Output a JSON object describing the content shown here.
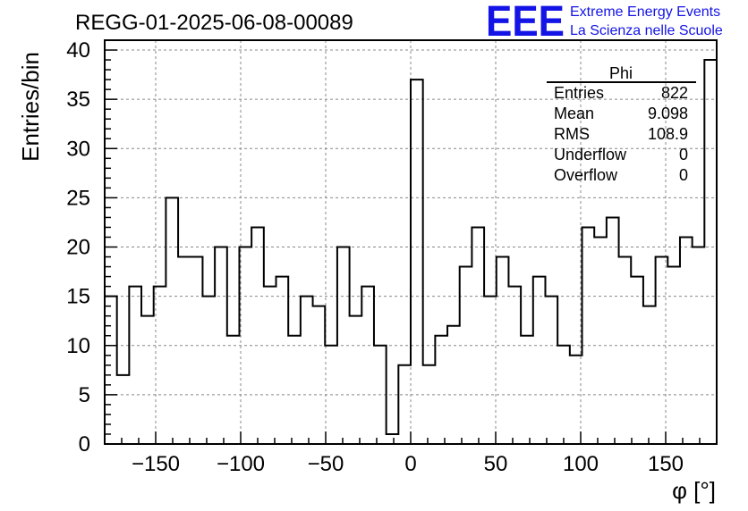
{
  "chart_data": {
    "type": "bar",
    "title": "REGG-01-2025-06-08-00089",
    "xlabel": "φ [°]",
    "ylabel": "Entries/bin",
    "xlim": [
      -180,
      180
    ],
    "ylim": [
      0,
      41
    ],
    "grid": true,
    "bin_edges": [
      -180,
      -172.8,
      -165.6,
      -158.4,
      -151.2,
      -144,
      -136.8,
      -129.6,
      -122.4,
      -115.2,
      -108,
      -100.8,
      -93.6,
      -86.4,
      -79.2,
      -72,
      -64.8,
      -57.6,
      -50.4,
      -43.2,
      -36,
      -28.8,
      -21.6,
      -14.4,
      -7.2,
      0,
      7.2,
      14.4,
      21.6,
      28.8,
      36,
      43.2,
      50.4,
      57.6,
      64.8,
      72,
      79.2,
      86.4,
      93.6,
      100.8,
      108,
      115.2,
      122.4,
      129.6,
      136.8,
      144,
      151.2,
      158.4,
      165.6,
      172.8,
      180
    ],
    "values": [
      15,
      7,
      16,
      13,
      16,
      25,
      19,
      19,
      15,
      20,
      11,
      20,
      22,
      16,
      17,
      11,
      15,
      14,
      10,
      20,
      13,
      16,
      10,
      1,
      8,
      37,
      8,
      11,
      12,
      18,
      22,
      15,
      19,
      16,
      11,
      17,
      15,
      10,
      9,
      22,
      21,
      23,
      19,
      17,
      14,
      19,
      18,
      21,
      20,
      39
    ],
    "x_ticks": [
      -150,
      -100,
      -50,
      0,
      50,
      100,
      150
    ],
    "x_tick_labels": [
      "−150",
      "−100",
      "−50",
      "0",
      "50",
      "100",
      "150"
    ],
    "y_ticks": [
      0,
      5,
      10,
      15,
      20,
      25,
      30,
      35,
      40
    ],
    "y_tick_labels": [
      "0",
      "5",
      "10",
      "15",
      "20",
      "25",
      "30",
      "35",
      "40"
    ],
    "stats_box": {
      "title": "Phi",
      "rows": [
        {
          "label": "Entries",
          "value": "822"
        },
        {
          "label": "Mean",
          "value": "9.098"
        },
        {
          "label": "RMS",
          "value": "108.9"
        },
        {
          "label": "Underflow",
          "value": "0"
        },
        {
          "label": "Overflow",
          "value": "0"
        }
      ],
      "placement": "top-right"
    }
  },
  "logo": {
    "mark": "EEE",
    "line1": "Extreme Energy Events",
    "line2": "La Scienza nelle Scuole",
    "color": "#1414e6"
  }
}
